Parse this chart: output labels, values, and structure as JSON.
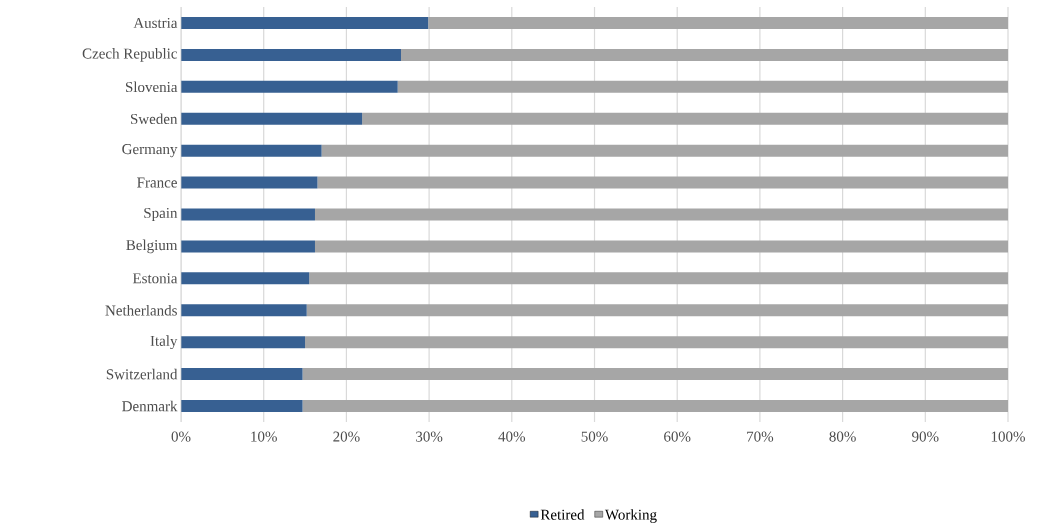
{
  "chart_data": {
    "type": "bar",
    "orientation": "horizontal",
    "stacked": true,
    "categories": [
      "Austria",
      "Czech Republic",
      "Slovenia",
      "Sweden",
      "Germany",
      "France",
      "Spain",
      "Belgium",
      "Estonia",
      "Netherlands",
      "Italy",
      "Switzerland",
      "Denmark"
    ],
    "series": [
      {
        "name": "Retired",
        "color": "#376092",
        "values": [
          29.9,
          26.6,
          26.2,
          21.9,
          17.0,
          16.5,
          16.2,
          16.2,
          15.5,
          15.2,
          15.0,
          14.7,
          14.7
        ]
      },
      {
        "name": "Working",
        "color": "#a6a6a6",
        "values": [
          70.1,
          73.4,
          73.8,
          78.1,
          83.0,
          83.5,
          83.8,
          83.8,
          84.5,
          84.8,
          85.0,
          85.3,
          85.3
        ]
      }
    ],
    "xlim": [
      0,
      100
    ],
    "xticks": [
      {
        "value": 0,
        "label": "0%"
      },
      {
        "value": 10,
        "label": "10%"
      },
      {
        "value": 20,
        "label": "20%"
      },
      {
        "value": 30,
        "label": "30%"
      },
      {
        "value": 40,
        "label": "40%"
      },
      {
        "value": 50,
        "label": "50%"
      },
      {
        "value": 60,
        "label": "60%"
      },
      {
        "value": 70,
        "label": "70%"
      },
      {
        "value": 80,
        "label": "80%"
      },
      {
        "value": 90,
        "label": "90%"
      },
      {
        "value": 100,
        "label": "100%"
      }
    ],
    "grid": "x",
    "legend": "bottom"
  }
}
